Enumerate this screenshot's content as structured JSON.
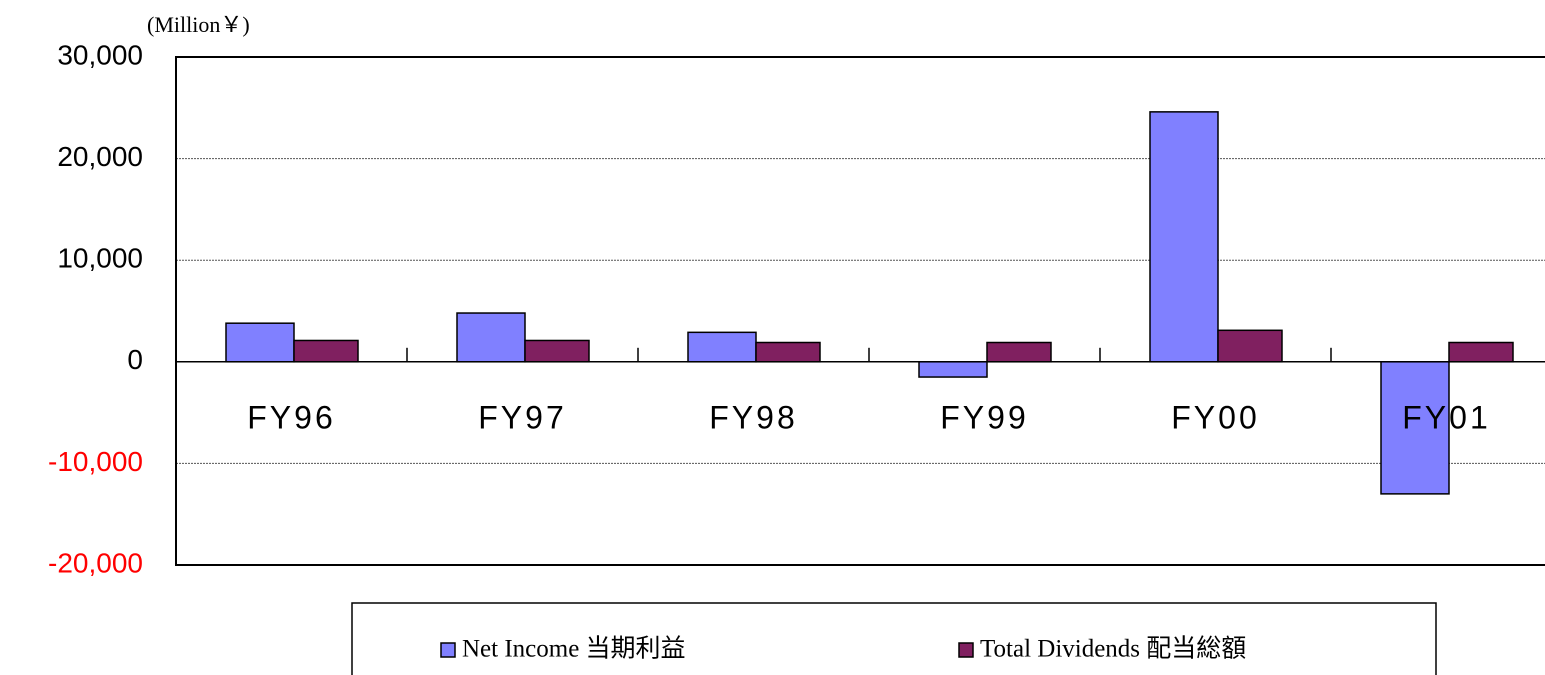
{
  "chart_data": {
    "type": "bar",
    "unit_label": "(Million￥)",
    "categories": [
      "FY96",
      "FY97",
      "FY98",
      "FY99",
      "FY00",
      "FY01"
    ],
    "series": [
      {
        "name": "Net Income 当期利益",
        "color": "#8080ff",
        "values": [
          3800,
          4800,
          2900,
          -1500,
          24600,
          -13000
        ]
      },
      {
        "name": "Total Dividends 配当総額",
        "color": "#802060",
        "values": [
          2100,
          2100,
          1900,
          1900,
          3100,
          1900
        ]
      }
    ],
    "ylim": [
      -20000,
      30000
    ],
    "yticks": [
      {
        "value": -20000,
        "label": "-20,000"
      },
      {
        "value": -10000,
        "label": "-10,000"
      },
      0,
      {
        "value": 10000,
        "label": "10,000"
      },
      {
        "value": 20000,
        "label": "20,000"
      },
      {
        "value": 30000,
        "label": "30,000"
      }
    ],
    "negative_tick_color": "#ff0000",
    "grid": true,
    "legend": "bottom"
  }
}
